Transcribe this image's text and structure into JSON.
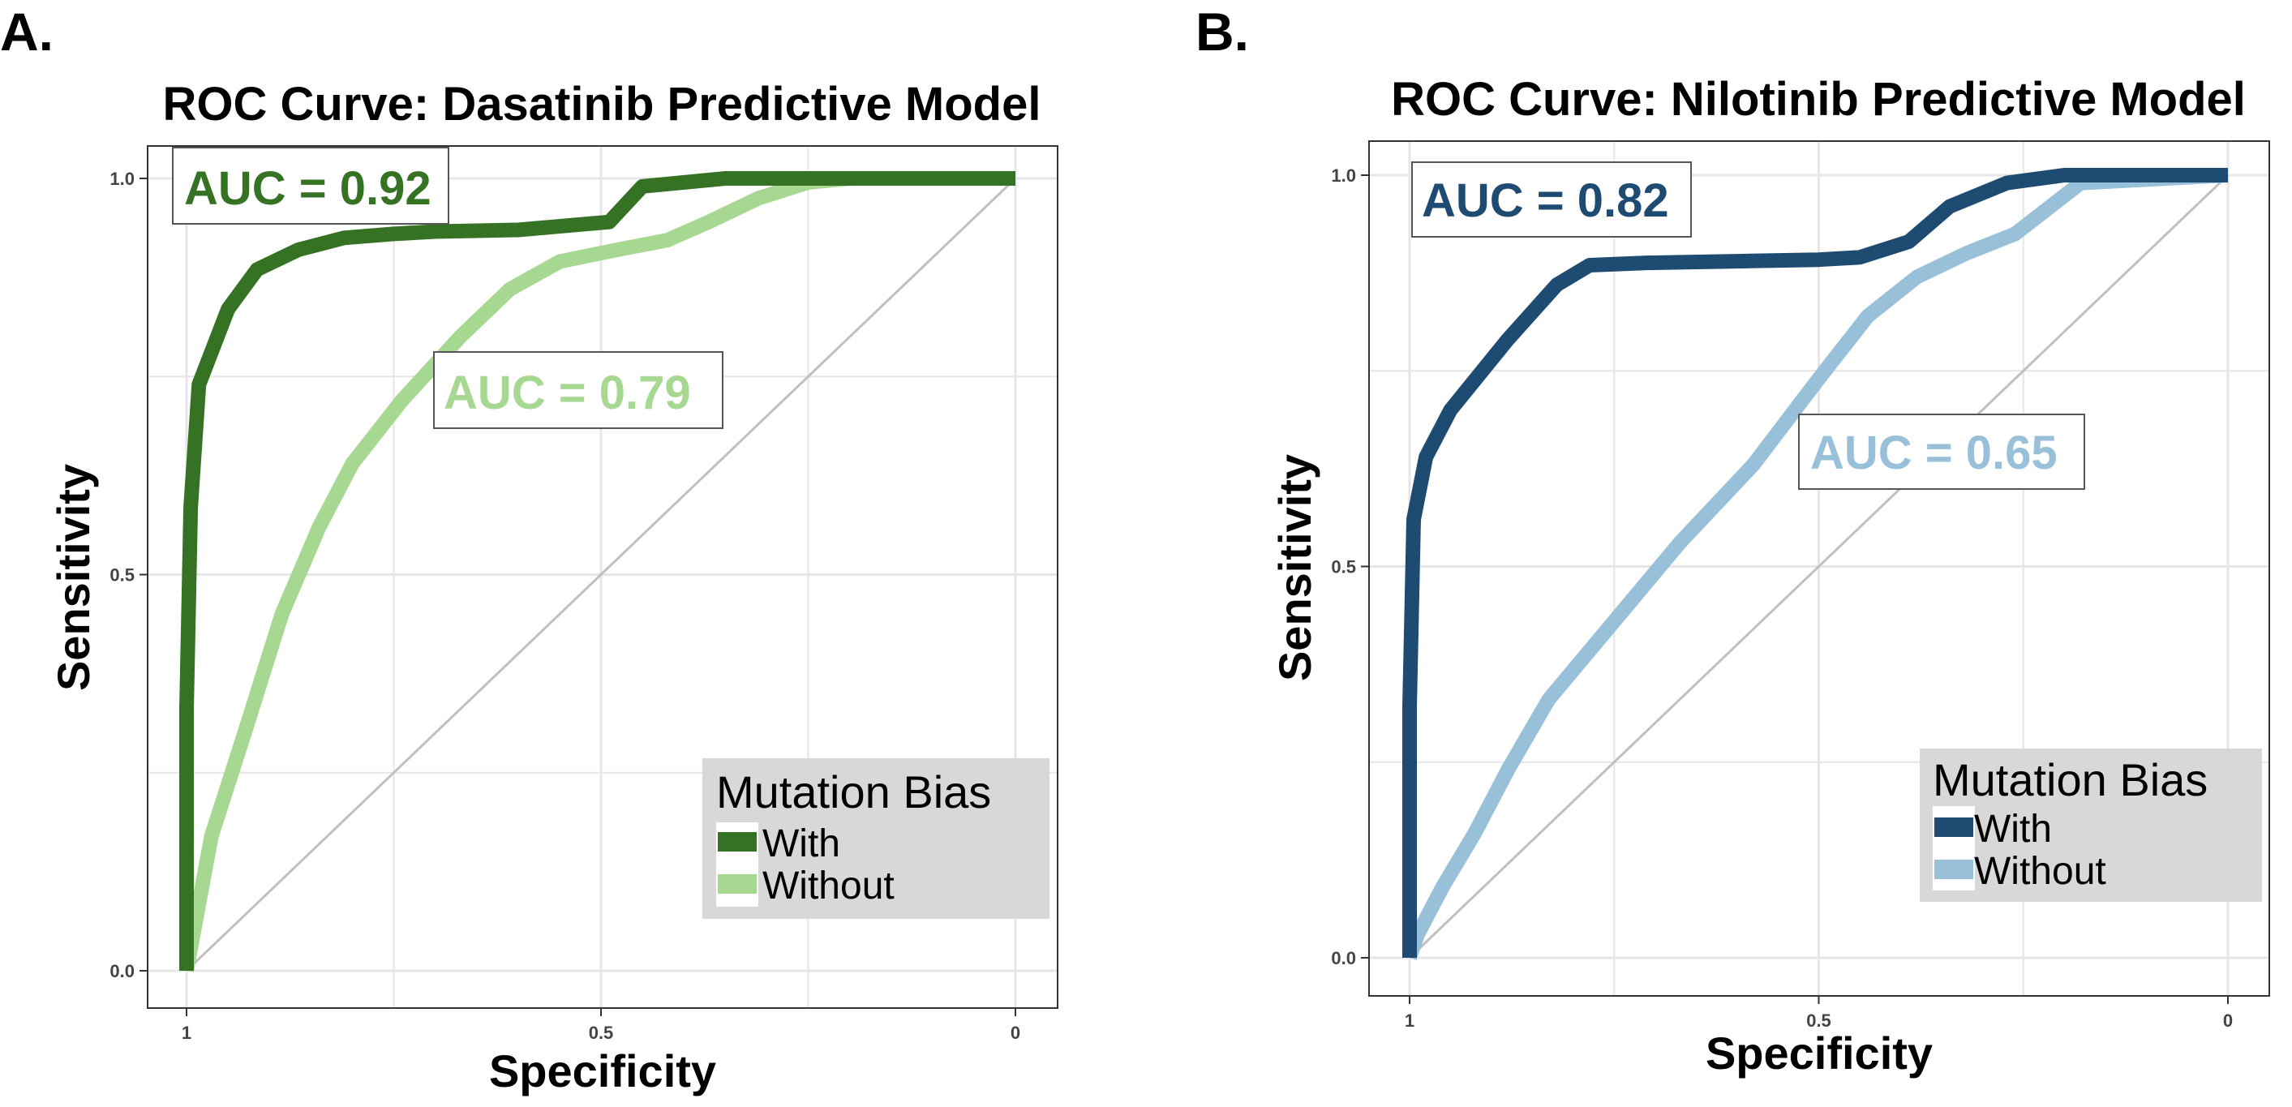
{
  "figure": {
    "panels": [
      {
        "panel_label": "A.",
        "colors": {
          "with": "#357223",
          "without": "#a6d891",
          "grid": "#e6e6e6",
          "diagonal": "#c0c0c0",
          "legend_bg": "#d8d8d8"
        }
      },
      {
        "panel_label": "B.",
        "colors": {
          "with": "#1e4b72",
          "without": "#99c0d9",
          "grid": "#e6e6e6",
          "diagonal": "#c0c0c0",
          "legend_bg": "#d8d8d8"
        }
      }
    ]
  },
  "chart_data": [
    {
      "type": "line",
      "title": "ROC Curve: Dasatinib Predictive Model",
      "xlabel": "Specificity",
      "ylabel": "Sensitivity",
      "x_reversed": true,
      "xlim": [
        1.0,
        0.0
      ],
      "ylim": [
        0.0,
        1.0
      ],
      "x_ticks": [
        "1",
        "0.5",
        "0"
      ],
      "y_ticks": [
        "0.0",
        "0.5",
        "1.0"
      ],
      "grid": true,
      "diagonal_reference": true,
      "legend": {
        "title": "Mutation Bias",
        "position": "bottom-right",
        "entries": [
          "With",
          "Without"
        ]
      },
      "annotations": [
        {
          "text": "AUC = 0.92",
          "series": "With"
        },
        {
          "text": "AUC = 0.79",
          "series": "Without"
        }
      ],
      "series": [
        {
          "name": "With",
          "x": [
            1.0,
            1.0,
            0.995,
            0.985,
            0.95,
            0.915,
            0.865,
            0.81,
            0.75,
            0.7,
            0.65,
            0.6,
            0.49,
            0.45,
            0.35,
            0.3,
            0.2,
            0.0
          ],
          "y": [
            0.0,
            0.33,
            0.585,
            0.74,
            0.835,
            0.885,
            0.91,
            0.925,
            0.93,
            0.933,
            0.934,
            0.935,
            0.945,
            0.99,
            1.0,
            1.0,
            1.0,
            1.0
          ]
        },
        {
          "name": "Without",
          "x": [
            1.0,
            0.97,
            0.93,
            0.885,
            0.84,
            0.8,
            0.74,
            0.67,
            0.61,
            0.55,
            0.48,
            0.42,
            0.37,
            0.31,
            0.25,
            0.2,
            0.0
          ],
          "y": [
            0.0,
            0.17,
            0.3,
            0.45,
            0.56,
            0.64,
            0.72,
            0.8,
            0.86,
            0.895,
            0.91,
            0.922,
            0.945,
            0.975,
            0.995,
            1.0,
            1.0
          ]
        }
      ]
    },
    {
      "type": "line",
      "title": "ROC Curve: Nilotinib Predictive Model",
      "xlabel": "Specificity",
      "ylabel": "Sensitivity",
      "x_reversed": true,
      "xlim": [
        1.0,
        0.0
      ],
      "ylim": [
        0.0,
        1.0
      ],
      "x_ticks": [
        "1",
        "0.5",
        "0"
      ],
      "y_ticks": [
        "0.0",
        "0.5",
        "1.0"
      ],
      "grid": true,
      "diagonal_reference": true,
      "legend": {
        "title": "Mutation Bias",
        "position": "bottom-right",
        "entries": [
          "With",
          "Without"
        ]
      },
      "annotations": [
        {
          "text": "AUC = 0.82",
          "series": "With"
        },
        {
          "text": "AUC = 0.65",
          "series": "Without"
        }
      ],
      "series": [
        {
          "name": "With",
          "x": [
            1.0,
            1.0,
            0.995,
            0.98,
            0.95,
            0.88,
            0.82,
            0.78,
            0.71,
            0.6,
            0.5,
            0.45,
            0.39,
            0.34,
            0.27,
            0.2,
            0.0
          ],
          "y": [
            0.0,
            0.32,
            0.56,
            0.64,
            0.7,
            0.79,
            0.86,
            0.885,
            0.888,
            0.89,
            0.892,
            0.895,
            0.915,
            0.96,
            0.99,
            1.0,
            1.0
          ]
        },
        {
          "name": "Without",
          "x": [
            1.0,
            0.99,
            0.96,
            0.92,
            0.88,
            0.83,
            0.75,
            0.67,
            0.58,
            0.5,
            0.44,
            0.38,
            0.32,
            0.26,
            0.18,
            0.0
          ],
          "y": [
            0.0,
            0.03,
            0.09,
            0.16,
            0.24,
            0.33,
            0.43,
            0.53,
            0.63,
            0.74,
            0.82,
            0.87,
            0.9,
            0.925,
            0.99,
            1.0
          ]
        }
      ]
    }
  ]
}
